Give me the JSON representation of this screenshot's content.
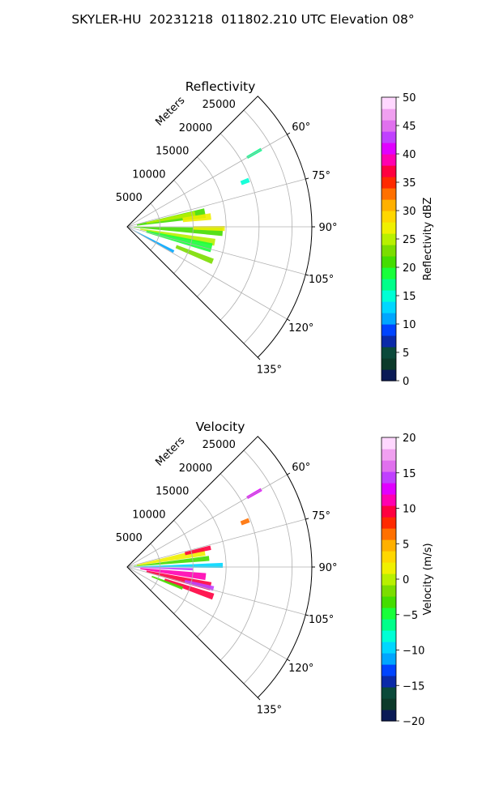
{
  "figure": {
    "title": "SKYLER-HU  20231218  011802.210 UTC Elevation 08°"
  },
  "chart_data": [
    {
      "type": "polar-sector",
      "title": "Reflectivity",
      "radial_axis_label": "Meters",
      "radial_ticks": [
        5000,
        10000,
        15000,
        20000,
        25000
      ],
      "radial_tick_labels": [
        "5000",
        "10000",
        "15000",
        "20000",
        "25000"
      ],
      "rmax": 28000,
      "azimuth_range_deg": [
        45,
        135
      ],
      "azimuth_ticks": [
        60,
        75,
        90,
        105,
        120,
        135
      ],
      "azimuth_tick_labels": [
        "60°",
        "75°",
        "90°",
        "105°",
        "120°",
        "135°"
      ],
      "grid": true,
      "colorbar": {
        "label": "Reflectivity dBZ",
        "min": 0,
        "max": 50,
        "ticks": [
          0,
          5,
          10,
          15,
          20,
          25,
          30,
          35,
          40,
          45,
          50
        ],
        "tick_labels": [
          "0",
          "5",
          "10",
          "15",
          "20",
          "25",
          "30",
          "35",
          "40",
          "45",
          "50"
        ],
        "colors": [
          "#0a1a55",
          "#0d3a2a",
          "#0b4a3a",
          "#0b2aa8",
          "#0044ff",
          "#00a6ff",
          "#00d7ff",
          "#00ffd5",
          "#00ff8a",
          "#18ff3a",
          "#44dd00",
          "#7bdd00",
          "#b8f000",
          "#f0f000",
          "#ffd700",
          "#ffb000",
          "#ff7000",
          "#ff2a00",
          "#ff0040",
          "#ff00b0",
          "#e000ff",
          "#c040ff",
          "#e070ee",
          "#f0a0f0",
          "#ffd8ff"
        ]
      },
      "echoes": [
        {
          "az": 60,
          "r0": 21000,
          "r1": 23500,
          "w": 1.2,
          "value": 16
        },
        {
          "az": 69,
          "r0": 18500,
          "r1": 19800,
          "w": 2.0,
          "value": 15
        },
        {
          "az": 80,
          "r0": 1500,
          "r1": 12000,
          "w": 7.0,
          "value": 20
        },
        {
          "az": 79,
          "r0": 3000,
          "r1": 10500,
          "w": 4.0,
          "value": 24
        },
        {
          "az": 83,
          "r0": 8500,
          "r1": 12800,
          "w": 4.5,
          "value": 27
        },
        {
          "az": 93,
          "r0": 1000,
          "r1": 14500,
          "w": 5.0,
          "value": 21
        },
        {
          "az": 91,
          "r0": 10000,
          "r1": 14800,
          "w": 3.0,
          "value": 27
        },
        {
          "az": 100,
          "r0": 2000,
          "r1": 13500,
          "w": 4.5,
          "value": 24
        },
        {
          "az": 104,
          "r0": 3000,
          "r1": 13200,
          "w": 6.0,
          "value": 19
        },
        {
          "az": 112,
          "r0": 8000,
          "r1": 14000,
          "w": 3.5,
          "value": 22
        },
        {
          "az": 118,
          "r0": 500,
          "r1": 8000,
          "w": 3.0,
          "value": 10
        }
      ]
    },
    {
      "type": "polar-sector",
      "title": "Velocity",
      "radial_axis_label": "Meters",
      "radial_ticks": [
        5000,
        10000,
        15000,
        20000,
        25000
      ],
      "radial_tick_labels": [
        "5000",
        "10000",
        "15000",
        "20000",
        "25000"
      ],
      "rmax": 28000,
      "azimuth_range_deg": [
        45,
        135
      ],
      "azimuth_ticks": [
        60,
        75,
        90,
        105,
        120,
        135
      ],
      "azimuth_tick_labels": [
        "60°",
        "75°",
        "90°",
        "105°",
        "120°",
        "135°"
      ],
      "grid": true,
      "colorbar": {
        "label": "Velocity (m/s)",
        "min": -20,
        "max": 20,
        "ticks": [
          -20,
          -15,
          -10,
          -5,
          0,
          5,
          10,
          15,
          20
        ],
        "tick_labels": [
          "−20",
          "−15",
          "−10",
          "−5",
          "0",
          "5",
          "10",
          "15",
          "20"
        ],
        "colors": [
          "#0a1a55",
          "#0d3a2a",
          "#0b4a3a",
          "#0b2aa8",
          "#0044ff",
          "#00a6ff",
          "#00d7ff",
          "#00ffd5",
          "#00ff8a",
          "#18ff3a",
          "#44dd00",
          "#7bdd00",
          "#b8f000",
          "#f0f000",
          "#ffd700",
          "#ffb000",
          "#ff7000",
          "#ff2a00",
          "#ff0040",
          "#ff00b0",
          "#e000ff",
          "#c040ff",
          "#e070ee",
          "#f0a0f0",
          "#ffd8ff"
        ]
      },
      "echoes": [
        {
          "az": 60,
          "r0": 21000,
          "r1": 23500,
          "w": 1.2,
          "value": 13
        },
        {
          "az": 69,
          "r0": 18500,
          "r1": 19800,
          "w": 2.0,
          "value": 7
        },
        {
          "az": 79,
          "r0": 1500,
          "r1": 12000,
          "w": 5.5,
          "value": 1
        },
        {
          "az": 77,
          "r0": 9000,
          "r1": 13000,
          "w": 3.0,
          "value": 9
        },
        {
          "az": 84,
          "r0": 1000,
          "r1": 12500,
          "w": 3.5,
          "value": -4
        },
        {
          "az": 89,
          "r0": 1000,
          "r1": 14500,
          "w": 3.0,
          "value": -10
        },
        {
          "az": 92,
          "r0": 500,
          "r1": 10000,
          "w": 2.0,
          "value": 15
        },
        {
          "az": 97,
          "r0": 2000,
          "r1": 12000,
          "w": 5.0,
          "value": 11
        },
        {
          "az": 103,
          "r0": 3000,
          "r1": 13000,
          "w": 5.5,
          "value": 9
        },
        {
          "az": 109,
          "r0": 6000,
          "r1": 13800,
          "w": 4.0,
          "value": 10
        },
        {
          "az": 104,
          "r0": 9000,
          "r1": 13500,
          "w": 3.0,
          "value": 14
        },
        {
          "az": 111,
          "r0": 4000,
          "r1": 9000,
          "w": 3.0,
          "value": -3
        }
      ]
    }
  ]
}
